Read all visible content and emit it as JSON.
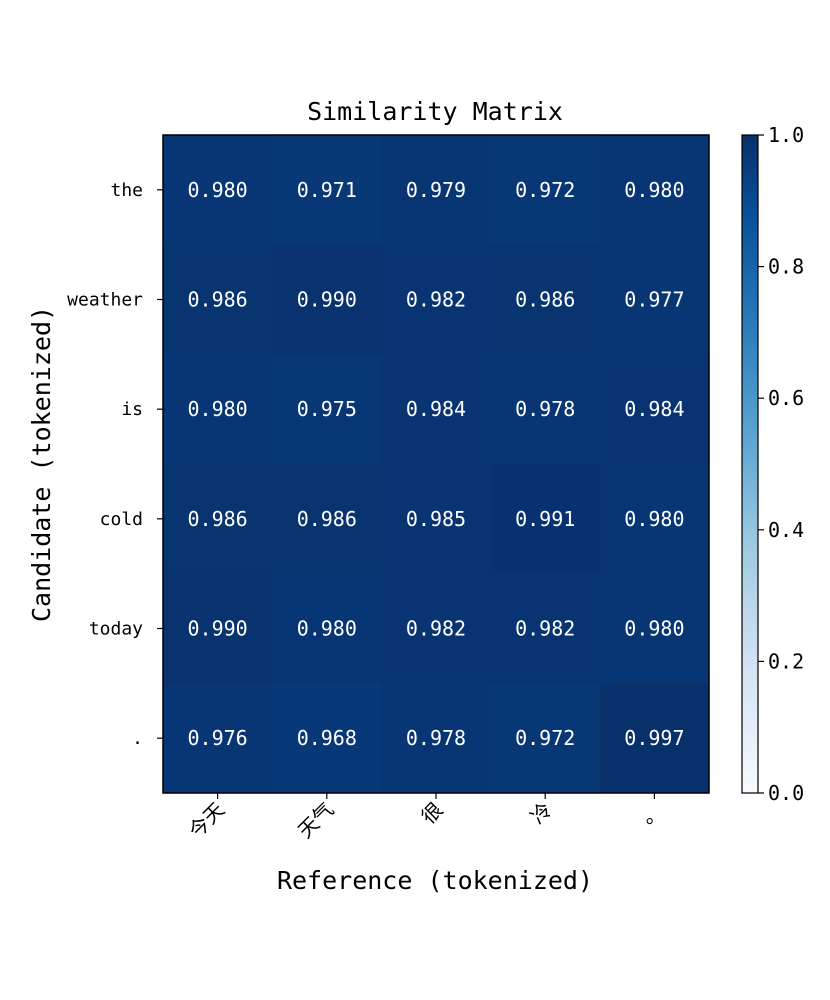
{
  "chart_data": {
    "type": "heatmap",
    "title": "Similarity Matrix",
    "xlabel": "Reference (tokenized)",
    "ylabel": "Candidate (tokenized)",
    "x_categories": [
      "今天",
      "天气",
      "很",
      "冷",
      "。"
    ],
    "y_categories": [
      "the",
      "weather",
      "is",
      "cold",
      "today",
      "."
    ],
    "values": [
      [
        0.98,
        0.971,
        0.979,
        0.972,
        0.98
      ],
      [
        0.986,
        0.99,
        0.982,
        0.986,
        0.977
      ],
      [
        0.98,
        0.975,
        0.984,
        0.978,
        0.984
      ],
      [
        0.986,
        0.986,
        0.985,
        0.991,
        0.98
      ],
      [
        0.99,
        0.98,
        0.982,
        0.982,
        0.98
      ],
      [
        0.976,
        0.968,
        0.978,
        0.972,
        0.997
      ]
    ],
    "value_labels": [
      [
        "0.980",
        "0.971",
        "0.979",
        "0.972",
        "0.980"
      ],
      [
        "0.986",
        "0.990",
        "0.982",
        "0.986",
        "0.977"
      ],
      [
        "0.980",
        "0.975",
        "0.984",
        "0.978",
        "0.984"
      ],
      [
        "0.986",
        "0.986",
        "0.985",
        "0.991",
        "0.980"
      ],
      [
        "0.990",
        "0.980",
        "0.982",
        "0.982",
        "0.980"
      ],
      [
        "0.976",
        "0.968",
        "0.978",
        "0.972",
        "0.997"
      ]
    ],
    "colorscale": "Blues",
    "colorbar": {
      "range": [
        0.0,
        1.0
      ],
      "ticks": [
        0.0,
        0.2,
        0.4,
        0.6,
        0.8,
        1.0
      ],
      "tick_labels": [
        "0.0",
        "0.2",
        "0.4",
        "0.6",
        "0.8",
        "1.0"
      ]
    },
    "grid": false,
    "x_tick_rotation_deg": -45
  }
}
